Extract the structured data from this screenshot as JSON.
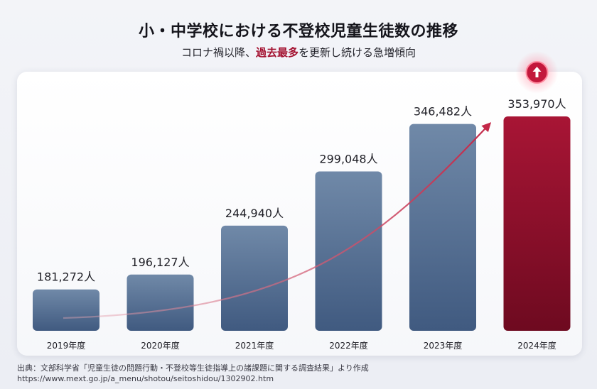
{
  "title": "小・中学校における不登校児童生徒数の推移",
  "subtitle": {
    "before": "コロナ禍以降、",
    "highlight": "過去最多",
    "after": "を更新し続ける急増傾向"
  },
  "source": {
    "line1": "出典：文部科学省「児童生徒の問題行動・不登校等生徒指導上の諸課題に関する調査結果」より作成",
    "line2": "https://www.mext.go.jp/a_menu/shotou/seitoshidou/1302902.htm"
  },
  "colors": {
    "bar": "#4e6a8e",
    "bar_top": "#6f86a5",
    "highlight_bar": "#8a0f2a",
    "trend_line": "#c9405a",
    "accent": "#a3102f"
  },
  "chart_data": {
    "type": "bar",
    "categories": [
      "2019年度",
      "2020年度",
      "2021年度",
      "2022年度",
      "2023年度",
      "2024年度"
    ],
    "values": [
      181272,
      196127,
      244940,
      299048,
      346482,
      353970
    ],
    "value_labels": [
      "181,272人",
      "196,127人",
      "244,940人",
      "299,048人",
      "346,482人",
      "353,970人"
    ],
    "highlight_index": 5,
    "highlight_icon": "up-arrow-icon",
    "trend_arrow": true,
    "ylim": [
      140000,
      355000
    ],
    "grid": false,
    "legend": "none"
  }
}
